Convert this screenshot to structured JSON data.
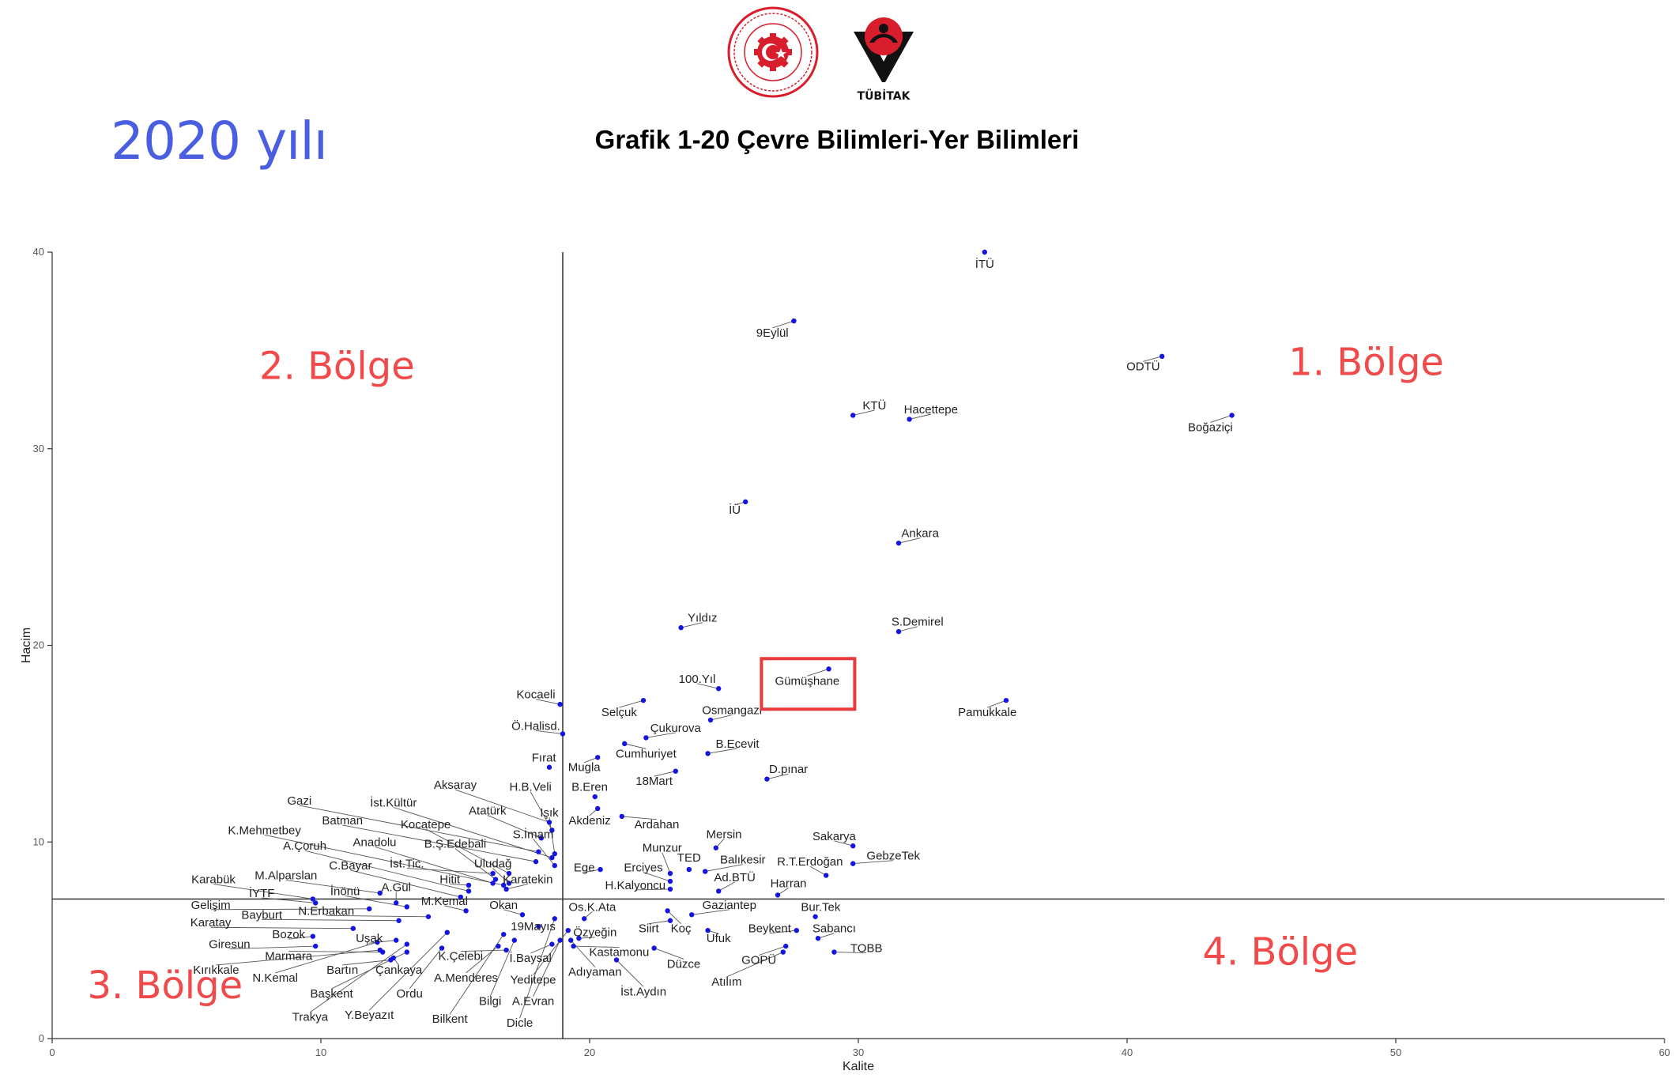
{
  "header": {
    "year_label": "2020 yılı",
    "title": "Grafik 1-20 Çevre Bilimleri-Yer Bilimleri",
    "tubitak_logo_text": "TÜBİTAK"
  },
  "colors": {
    "point": "#1515e0",
    "region_label": "#f04a4a",
    "year_label": "#4a5ee0",
    "highlight_box": "#e83a3a"
  },
  "chart_data": {
    "type": "scatter",
    "title": "Grafik 1-20 Çevre Bilimleri-Yer Bilimleri",
    "xlabel": "Kalite",
    "ylabel": "Hacim",
    "xlim": [
      0,
      60
    ],
    "ylim": [
      0,
      40
    ],
    "x_ticks": [
      0,
      10,
      20,
      30,
      40,
      50,
      60
    ],
    "y_ticks": [
      0,
      10,
      20,
      30,
      40
    ],
    "grid": false,
    "reference_lines": {
      "x": 19,
      "y": 7.1
    },
    "highlighted": "Gümüşhane",
    "region_labels": [
      {
        "text": "1. Bölge",
        "x": 48.9,
        "y": 34.4
      },
      {
        "text": "2. Bölge",
        "x": 10.6,
        "y": 34.2
      },
      {
        "text": "3. Bölge",
        "x": 4.2,
        "y": 2.7
      },
      {
        "text": "4. Bölge",
        "x": 45.7,
        "y": 4.4
      }
    ],
    "points": [
      {
        "name": "İTÜ",
        "x": 34.7,
        "y": 40.0,
        "lx": 34.7,
        "ly": 39.4
      },
      {
        "name": "9Eylül",
        "x": 27.6,
        "y": 36.5,
        "lx": 26.8,
        "ly": 35.9
      },
      {
        "name": "ODTÜ",
        "x": 41.3,
        "y": 34.7,
        "lx": 40.6,
        "ly": 34.2
      },
      {
        "name": "Boğaziçi",
        "x": 43.9,
        "y": 31.7,
        "lx": 43.1,
        "ly": 31.1
      },
      {
        "name": "KTÜ",
        "x": 29.8,
        "y": 31.7,
        "lx": 30.6,
        "ly": 32.2
      },
      {
        "name": "Hacettepe",
        "x": 31.9,
        "y": 31.5,
        "lx": 32.7,
        "ly": 32.0
      },
      {
        "name": "İÜ",
        "x": 25.8,
        "y": 27.3,
        "lx": 25.4,
        "ly": 26.9
      },
      {
        "name": "Ankara",
        "x": 31.5,
        "y": 25.2,
        "lx": 32.3,
        "ly": 25.7
      },
      {
        "name": "Yıldız",
        "x": 23.4,
        "y": 20.9,
        "lx": 24.2,
        "ly": 21.4
      },
      {
        "name": "S.Demirel",
        "x": 31.5,
        "y": 20.7,
        "lx": 32.2,
        "ly": 21.2
      },
      {
        "name": "Gümüşhane",
        "x": 28.9,
        "y": 18.8,
        "lx": 28.1,
        "ly": 18.2
      },
      {
        "name": "100.Yıl",
        "x": 24.8,
        "y": 17.8,
        "lx": 24.0,
        "ly": 18.3
      },
      {
        "name": "Pamukkale",
        "x": 35.5,
        "y": 17.2,
        "lx": 34.8,
        "ly": 16.6
      },
      {
        "name": "Kocaeli",
        "x": 18.9,
        "y": 17.0,
        "lx": 18.0,
        "ly": 17.5
      },
      {
        "name": "Selçuk",
        "x": 22.0,
        "y": 17.2,
        "lx": 21.1,
        "ly": 16.6
      },
      {
        "name": "Osmangazi",
        "x": 24.5,
        "y": 16.2,
        "lx": 25.3,
        "ly": 16.7
      },
      {
        "name": "Ö.Halisd.",
        "x": 19.0,
        "y": 15.5,
        "lx": 18.0,
        "ly": 15.9
      },
      {
        "name": "Çukurova",
        "x": 22.1,
        "y": 15.3,
        "lx": 23.2,
        "ly": 15.8
      },
      {
        "name": "Cumhuriyet",
        "x": 21.3,
        "y": 15.0,
        "lx": 22.1,
        "ly": 14.5
      },
      {
        "name": "B.Ecevit",
        "x": 24.4,
        "y": 14.5,
        "lx": 25.5,
        "ly": 15.0
      },
      {
        "name": "Mugla",
        "x": 20.3,
        "y": 14.3,
        "lx": 19.8,
        "ly": 13.8
      },
      {
        "name": "Fırat",
        "x": 18.5,
        "y": 13.8,
        "lx": 18.3,
        "ly": 14.3
      },
      {
        "name": "18Mart",
        "x": 23.2,
        "y": 13.6,
        "lx": 22.4,
        "ly": 13.1
      },
      {
        "name": "D.pınar",
        "x": 26.6,
        "y": 13.2,
        "lx": 27.4,
        "ly": 13.7
      },
      {
        "name": "B.Eren",
        "x": 20.2,
        "y": 12.3,
        "lx": 20.0,
        "ly": 12.8
      },
      {
        "name": "Aksaray",
        "x": 18.5,
        "y": 11.0,
        "lx": 15.0,
        "ly": 12.9
      },
      {
        "name": "H.B.Veli",
        "x": 18.6,
        "y": 10.6,
        "lx": 17.8,
        "ly": 12.8
      },
      {
        "name": "İst.Kültür",
        "x": 18.6,
        "y": 9.2,
        "lx": 12.7,
        "ly": 12.0
      },
      {
        "name": "Gazi",
        "x": 18.1,
        "y": 9.5,
        "lx": 9.2,
        "ly": 12.1
      },
      {
        "name": "Atatürk",
        "x": 18.2,
        "y": 10.2,
        "lx": 16.2,
        "ly": 11.6
      },
      {
        "name": "Işık",
        "x": 18.7,
        "y": 9.4,
        "lx": 18.5,
        "ly": 11.5
      },
      {
        "name": "Akdeniz",
        "x": 20.3,
        "y": 11.7,
        "lx": 20.0,
        "ly": 11.1
      },
      {
        "name": "Ardahan",
        "x": 21.2,
        "y": 11.3,
        "lx": 22.5,
        "ly": 10.9
      },
      {
        "name": "Batman",
        "x": 18.0,
        "y": 9.0,
        "lx": 10.8,
        "ly": 11.1
      },
      {
        "name": "Kocatepe",
        "x": 17.0,
        "y": 8.4,
        "lx": 13.9,
        "ly": 10.9
      },
      {
        "name": "K.Mehmetbey",
        "x": 16.8,
        "y": 7.8,
        "lx": 7.9,
        "ly": 10.6
      },
      {
        "name": "S.İmam",
        "x": 18.7,
        "y": 8.8,
        "lx": 17.9,
        "ly": 10.4
      },
      {
        "name": "Mersin",
        "x": 24.7,
        "y": 9.7,
        "lx": 25.0,
        "ly": 10.4
      },
      {
        "name": "Sakarya",
        "x": 29.8,
        "y": 9.8,
        "lx": 29.1,
        "ly": 10.3
      },
      {
        "name": "Anadolu",
        "x": 16.4,
        "y": 7.9,
        "lx": 12.0,
        "ly": 10.0
      },
      {
        "name": "B.Ş.Edebali",
        "x": 16.5,
        "y": 8.1,
        "lx": 15.0,
        "ly": 9.9
      },
      {
        "name": "A.Çoruh",
        "x": 15.5,
        "y": 7.5,
        "lx": 9.4,
        "ly": 9.8
      },
      {
        "name": "Munzur",
        "x": 23.0,
        "y": 8.4,
        "lx": 22.7,
        "ly": 9.7
      },
      {
        "name": "TED",
        "x": 23.7,
        "y": 8.6,
        "lx": 23.7,
        "ly": 9.2
      },
      {
        "name": "GebzeTek",
        "x": 29.8,
        "y": 8.9,
        "lx": 31.3,
        "ly": 9.3
      },
      {
        "name": "Balıkesir",
        "x": 24.3,
        "y": 8.5,
        "lx": 25.7,
        "ly": 9.1
      },
      {
        "name": "R.T.Erdoğan",
        "x": 28.8,
        "y": 8.3,
        "lx": 28.2,
        "ly": 9.0
      },
      {
        "name": "İst.Tic.",
        "x": 16.4,
        "y": 8.4,
        "lx": 13.2,
        "ly": 8.9
      },
      {
        "name": "Uludağ",
        "x": 17.0,
        "y": 7.9,
        "lx": 16.4,
        "ly": 8.9
      },
      {
        "name": "C.Bayar",
        "x": 15.2,
        "y": 7.2,
        "lx": 11.1,
        "ly": 8.8
      },
      {
        "name": "Ege",
        "x": 20.4,
        "y": 8.6,
        "lx": 19.8,
        "ly": 8.7
      },
      {
        "name": "Erciyes",
        "x": 23.0,
        "y": 8.0,
        "lx": 22.0,
        "ly": 8.7
      },
      {
        "name": "M.Alparslan",
        "x": 12.2,
        "y": 7.4,
        "lx": 8.7,
        "ly": 8.3
      },
      {
        "name": "Karabük",
        "x": 9.7,
        "y": 7.1,
        "lx": 6.0,
        "ly": 8.1
      },
      {
        "name": "Hitit",
        "x": 15.5,
        "y": 7.8,
        "lx": 14.8,
        "ly": 8.1
      },
      {
        "name": "Karatekin",
        "x": 16.9,
        "y": 7.6,
        "lx": 17.7,
        "ly": 8.1
      },
      {
        "name": "Ad.BTÜ",
        "x": 24.8,
        "y": 7.5,
        "lx": 25.4,
        "ly": 8.2
      },
      {
        "name": "Harran",
        "x": 27.0,
        "y": 7.3,
        "lx": 27.4,
        "ly": 7.9
      },
      {
        "name": "A.Gül",
        "x": 12.8,
        "y": 6.9,
        "lx": 12.8,
        "ly": 7.7
      },
      {
        "name": "H.Kalyoncu",
        "x": 23.0,
        "y": 7.6,
        "lx": 21.7,
        "ly": 7.8
      },
      {
        "name": "İYTF",
        "x": 9.8,
        "y": 6.9,
        "lx": 7.8,
        "ly": 7.4
      },
      {
        "name": "İnönü",
        "x": 13.2,
        "y": 6.7,
        "lx": 10.9,
        "ly": 7.5
      },
      {
        "name": "M.Kemal",
        "x": 15.4,
        "y": 6.5,
        "lx": 14.6,
        "ly": 7.0
      },
      {
        "name": "Okan",
        "x": 17.5,
        "y": 6.3,
        "lx": 16.8,
        "ly": 6.8
      },
      {
        "name": "Gelişim",
        "x": 11.8,
        "y": 6.6,
        "lx": 5.9,
        "ly": 6.8
      },
      {
        "name": "Os.K.Ata",
        "x": 19.8,
        "y": 6.1,
        "lx": 20.1,
        "ly": 6.7
      },
      {
        "name": "Gaziantep",
        "x": 23.8,
        "y": 6.3,
        "lx": 25.2,
        "ly": 6.8
      },
      {
        "name": "Bur.Tek",
        "x": 28.4,
        "y": 6.2,
        "lx": 28.6,
        "ly": 6.7
      },
      {
        "name": "N.Erbakan",
        "x": 14.0,
        "y": 6.2,
        "lx": 10.2,
        "ly": 6.5
      },
      {
        "name": "Bayburt",
        "x": 12.9,
        "y": 6.0,
        "lx": 7.8,
        "ly": 6.3
      },
      {
        "name": "19Mayıs",
        "x": 18.1,
        "y": 5.7,
        "lx": 17.9,
        "ly": 5.7
      },
      {
        "name": "Karatay",
        "x": 11.2,
        "y": 5.6,
        "lx": 5.9,
        "ly": 5.9
      },
      {
        "name": "Siirt",
        "x": 23.0,
        "y": 6.0,
        "lx": 22.2,
        "ly": 5.6
      },
      {
        "name": "Koç",
        "x": 22.9,
        "y": 6.5,
        "lx": 23.4,
        "ly": 5.6
      },
      {
        "name": "Beykent",
        "x": 27.7,
        "y": 5.5,
        "lx": 26.7,
        "ly": 5.6
      },
      {
        "name": "Sabancı",
        "x": 28.5,
        "y": 5.1,
        "lx": 29.1,
        "ly": 5.6
      },
      {
        "name": "Özyeğin",
        "x": 19.6,
        "y": 5.1,
        "lx": 20.2,
        "ly": 5.4
      },
      {
        "name": "Bozok",
        "x": 9.7,
        "y": 5.2,
        "lx": 8.8,
        "ly": 5.3
      },
      {
        "name": "Uşak",
        "x": 12.8,
        "y": 5.0,
        "lx": 11.8,
        "ly": 5.1
      },
      {
        "name": "Ufuk",
        "x": 24.4,
        "y": 5.5,
        "lx": 24.8,
        "ly": 5.1
      },
      {
        "name": "Giresun",
        "x": 9.8,
        "y": 4.7,
        "lx": 6.6,
        "ly": 4.8
      },
      {
        "name": "TOBB",
        "x": 29.1,
        "y": 4.4,
        "lx": 30.3,
        "ly": 4.6
      },
      {
        "name": "Kastamonu",
        "x": 19.4,
        "y": 4.7,
        "lx": 21.1,
        "ly": 4.4
      },
      {
        "name": "K.Çelebi",
        "x": 16.9,
        "y": 4.5,
        "lx": 15.2,
        "ly": 4.2
      },
      {
        "name": "Marmara",
        "x": 12.3,
        "y": 4.4,
        "lx": 8.8,
        "ly": 4.2
      },
      {
        "name": "İ.Baysal",
        "x": 18.6,
        "y": 4.8,
        "lx": 17.8,
        "ly": 4.1
      },
      {
        "name": "GOPÜ",
        "x": 27.3,
        "y": 4.7,
        "lx": 26.3,
        "ly": 4.0
      },
      {
        "name": "Düzce",
        "x": 22.4,
        "y": 4.6,
        "lx": 23.5,
        "ly": 3.8
      },
      {
        "name": "Bartın",
        "x": 12.6,
        "y": 4.0,
        "lx": 10.8,
        "ly": 3.5
      },
      {
        "name": "Kırıkkale",
        "x": 12.2,
        "y": 4.5,
        "lx": 6.1,
        "ly": 3.5
      },
      {
        "name": "Çankaya",
        "x": 12.7,
        "y": 4.1,
        "lx": 12.9,
        "ly": 3.5
      },
      {
        "name": "Adıyaman",
        "x": 19.3,
        "y": 5.0,
        "lx": 20.2,
        "ly": 3.4
      },
      {
        "name": "N.Kemal",
        "x": 12.1,
        "y": 4.9,
        "lx": 8.3,
        "ly": 3.1
      },
      {
        "name": "A.Menderes",
        "x": 16.6,
        "y": 4.7,
        "lx": 15.4,
        "ly": 3.1
      },
      {
        "name": "Yeditepe",
        "x": 19.2,
        "y": 5.5,
        "lx": 17.9,
        "ly": 3.0
      },
      {
        "name": "Atılım",
        "x": 27.2,
        "y": 4.4,
        "lx": 25.1,
        "ly": 2.9
      },
      {
        "name": "İst.Aydın",
        "x": 21.0,
        "y": 4.0,
        "lx": 22.0,
        "ly": 2.4
      },
      {
        "name": "Ordu",
        "x": 14.5,
        "y": 4.6,
        "lx": 13.3,
        "ly": 2.3
      },
      {
        "name": "Başkent",
        "x": 13.2,
        "y": 4.4,
        "lx": 10.4,
        "ly": 2.3
      },
      {
        "name": "Bilgi",
        "x": 17.2,
        "y": 5.0,
        "lx": 16.3,
        "ly": 1.9
      },
      {
        "name": "A.Evran",
        "x": 18.9,
        "y": 5.0,
        "lx": 17.9,
        "ly": 1.9
      },
      {
        "name": "Y.Beyazıt",
        "x": 14.7,
        "y": 5.4,
        "lx": 11.8,
        "ly": 1.2
      },
      {
        "name": "Trakya",
        "x": 13.2,
        "y": 4.8,
        "lx": 9.6,
        "ly": 1.1
      },
      {
        "name": "Bilkent",
        "x": 16.8,
        "y": 5.3,
        "lx": 14.8,
        "ly": 1.0
      },
      {
        "name": "Dicle",
        "x": 18.7,
        "y": 6.1,
        "lx": 17.4,
        "ly": 0.8
      }
    ]
  }
}
